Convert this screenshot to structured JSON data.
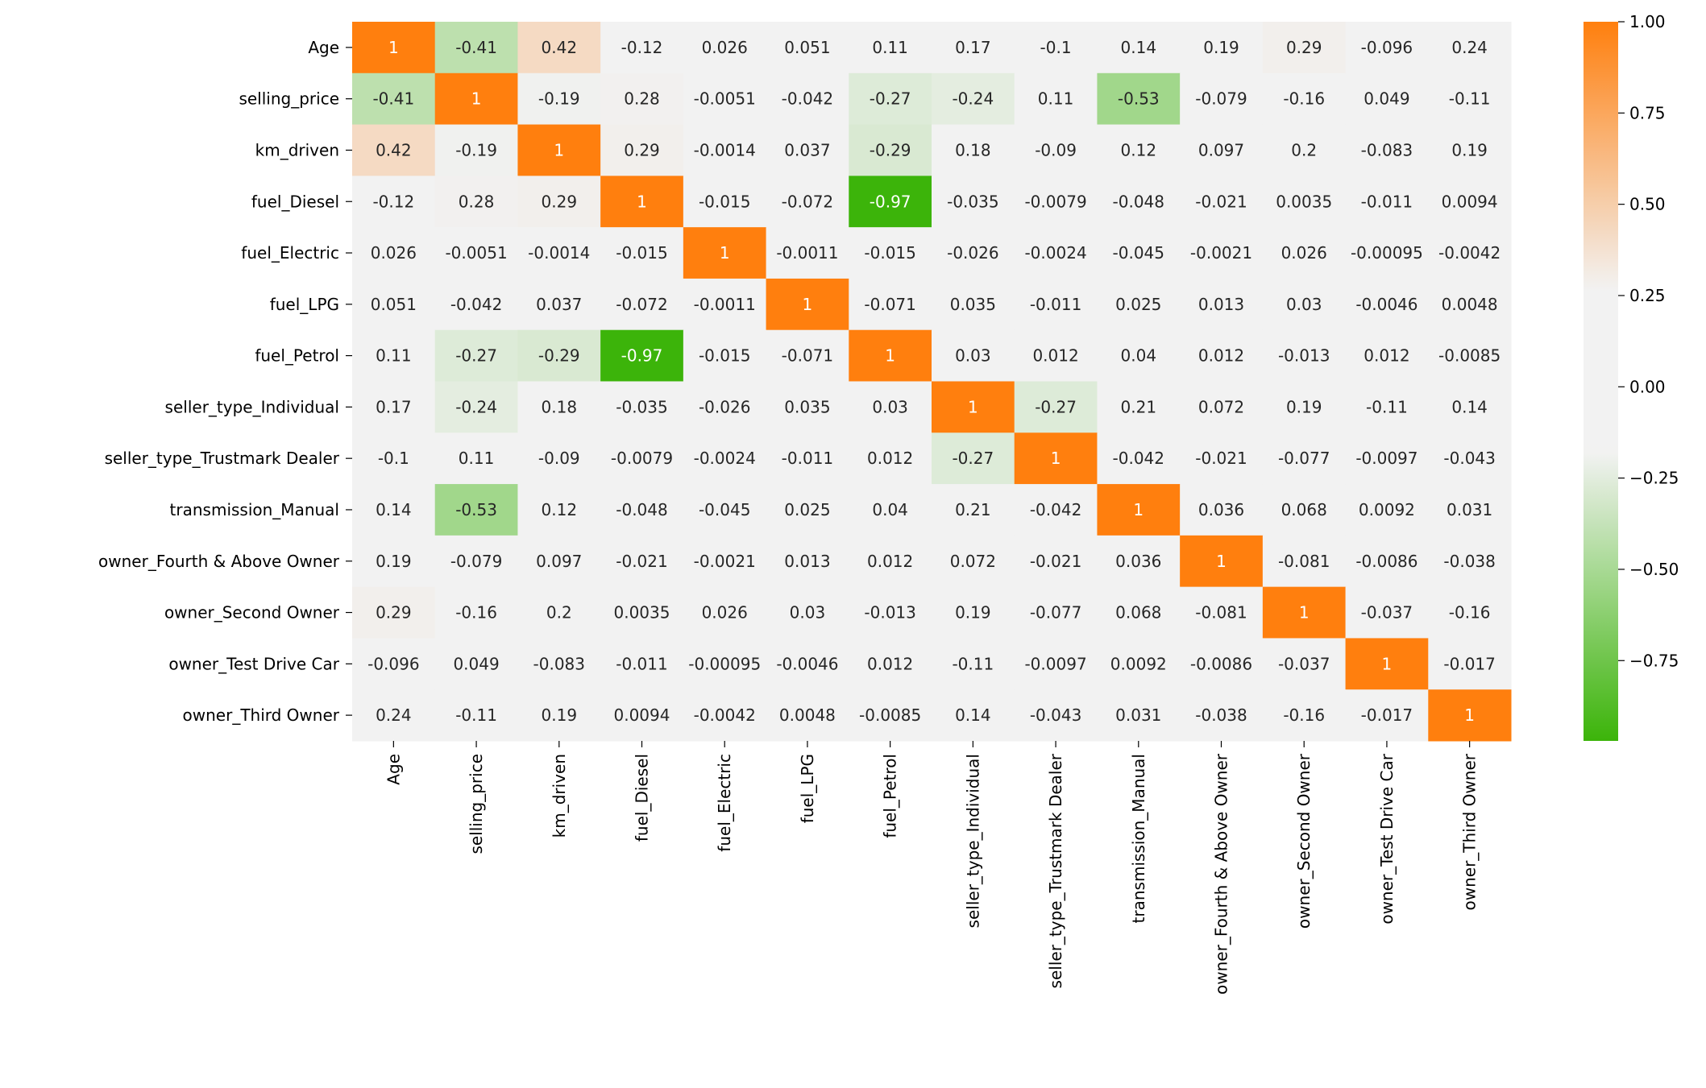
{
  "chart_data": {
    "type": "heatmap",
    "title": "",
    "labels": [
      "Age",
      "selling_price",
      "km_driven",
      "fuel_Diesel",
      "fuel_Electric",
      "fuel_LPG",
      "fuel_Petrol",
      "seller_type_Individual",
      "seller_type_Trustmark Dealer",
      "transmission_Manual",
      "owner_Fourth & Above Owner",
      "owner_Second Owner",
      "owner_Test Drive Car",
      "owner_Third Owner"
    ],
    "values": [
      [
        1,
        -0.41,
        0.42,
        -0.12,
        0.026,
        0.051,
        0.11,
        0.17,
        -0.1,
        0.14,
        0.19,
        0.29,
        -0.096,
        0.24
      ],
      [
        -0.41,
        1,
        -0.19,
        0.28,
        -0.0051,
        -0.042,
        -0.27,
        -0.24,
        0.11,
        -0.53,
        -0.079,
        -0.16,
        0.049,
        -0.11
      ],
      [
        0.42,
        -0.19,
        1,
        0.29,
        -0.0014,
        0.037,
        -0.29,
        0.18,
        -0.09,
        0.12,
        0.097,
        0.2,
        -0.083,
        0.19
      ],
      [
        -0.12,
        0.28,
        0.29,
        1,
        -0.015,
        -0.072,
        -0.97,
        -0.035,
        -0.0079,
        -0.048,
        -0.021,
        0.0035,
        -0.011,
        0.0094
      ],
      [
        0.026,
        -0.0051,
        -0.0014,
        -0.015,
        1,
        -0.0011,
        -0.015,
        -0.026,
        -0.0024,
        -0.045,
        -0.0021,
        0.026,
        -0.00095,
        -0.0042
      ],
      [
        0.051,
        -0.042,
        0.037,
        -0.072,
        -0.0011,
        1,
        -0.071,
        0.035,
        -0.011,
        0.025,
        0.013,
        0.03,
        -0.0046,
        0.0048
      ],
      [
        0.11,
        -0.27,
        -0.29,
        -0.97,
        -0.015,
        -0.071,
        1,
        0.03,
        0.012,
        0.04,
        0.012,
        -0.013,
        0.012,
        -0.0085
      ],
      [
        0.17,
        -0.24,
        0.18,
        -0.035,
        -0.026,
        0.035,
        0.03,
        1,
        -0.27,
        0.21,
        0.072,
        0.19,
        -0.11,
        0.14
      ],
      [
        -0.1,
        0.11,
        -0.09,
        -0.0079,
        -0.0024,
        -0.011,
        0.012,
        -0.27,
        1,
        -0.042,
        -0.021,
        -0.077,
        -0.0097,
        -0.043
      ],
      [
        0.14,
        -0.53,
        0.12,
        -0.048,
        -0.045,
        0.025,
        0.04,
        0.21,
        -0.042,
        1,
        0.036,
        0.068,
        0.0092,
        0.031
      ],
      [
        0.19,
        -0.079,
        0.097,
        -0.021,
        -0.0021,
        0.013,
        0.012,
        0.072,
        -0.021,
        0.036,
        1,
        -0.081,
        -0.0086,
        -0.038
      ],
      [
        0.29,
        -0.16,
        0.2,
        0.0035,
        0.026,
        0.03,
        -0.013,
        0.19,
        -0.077,
        0.068,
        -0.081,
        1,
        -0.037,
        -0.16
      ],
      [
        -0.096,
        0.049,
        -0.083,
        -0.011,
        -0.00095,
        -0.0046,
        0.012,
        -0.11,
        -0.0097,
        0.0092,
        -0.0086,
        -0.037,
        1,
        -0.017
      ],
      [
        0.24,
        -0.11,
        0.19,
        0.0094,
        -0.0042,
        0.0048,
        -0.0085,
        0.14,
        -0.043,
        0.031,
        -0.038,
        -0.16,
        -0.017,
        1
      ]
    ],
    "colorbar": {
      "range": [
        -0.97,
        1.0
      ],
      "ticks": [
        "1.00",
        "0.75",
        "0.50",
        "0.25",
        "0.00",
        "−0.25",
        "−0.50",
        "−0.75"
      ],
      "tick_values": [
        1.0,
        0.75,
        0.5,
        0.25,
        0.0,
        -0.25,
        -0.5,
        -0.75
      ]
    },
    "colors": {
      "low": "#3cb40a",
      "mid": "#f2f2f2",
      "high": "#ff7f0e"
    }
  }
}
